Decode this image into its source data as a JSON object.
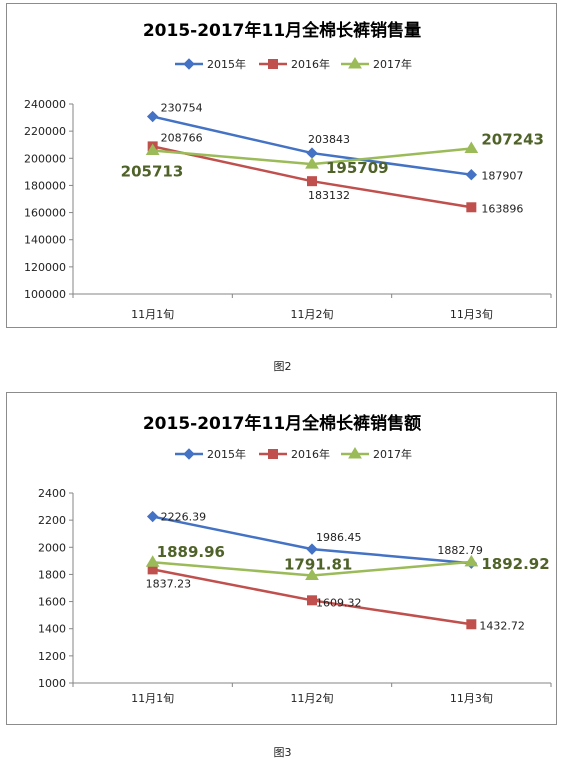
{
  "chart_data": [
    {
      "type": "line",
      "title": "2015-2017年11月全棉长裤销售量",
      "categories": [
        "11月1旬",
        "11月2旬",
        "11月3旬"
      ],
      "ylim": [
        100000,
        240000
      ],
      "yticks": [
        "100000",
        "120000",
        "140000",
        "160000",
        "180000",
        "200000",
        "220000",
        "240000"
      ],
      "grid": false,
      "legend": "top",
      "series": [
        {
          "name": "2015年",
          "values": [
            230754,
            203843,
            187907
          ],
          "color": "#4472c4",
          "marker": "diamond",
          "labels": [
            "230754",
            "203843",
            "187907"
          ]
        },
        {
          "name": "2016年",
          "values": [
            208766,
            183132,
            163896
          ],
          "color": "#c0504d",
          "marker": "square",
          "labels": [
            "208766",
            "183132",
            "163896"
          ]
        },
        {
          "name": "2017年",
          "values": [
            205713,
            195709,
            207243
          ],
          "color": "#9bbb59",
          "marker": "triangle",
          "labels": [
            "205713",
            "195709",
            "207243"
          ]
        }
      ]
    },
    {
      "type": "line",
      "title": "2015-2017年11月全棉长裤销售额",
      "categories": [
        "11月1旬",
        "11月2旬",
        "11月3旬"
      ],
      "ylim": [
        1000,
        2400
      ],
      "yticks": [
        "1000",
        "1200",
        "1400",
        "1600",
        "1800",
        "2000",
        "2200",
        "2400"
      ],
      "grid": false,
      "legend": "top",
      "series": [
        {
          "name": "2015年",
          "values": [
            2226.39,
            1986.45,
            1882.79
          ],
          "color": "#4472c4",
          "marker": "diamond",
          "labels": [
            "2226.39",
            "1986.45",
            "1882.79"
          ]
        },
        {
          "name": "2016年",
          "values": [
            1837.23,
            1609.32,
            1432.72
          ],
          "color": "#c0504d",
          "marker": "square",
          "labels": [
            "1837.23",
            "1609.32",
            "1432.72"
          ]
        },
        {
          "name": "2017年",
          "values": [
            1889.96,
            1791.81,
            1892.92
          ],
          "color": "#9bbb59",
          "marker": "triangle",
          "labels": [
            "1889.96",
            "1791.81",
            "1892.92"
          ]
        }
      ]
    }
  ],
  "captions": [
    "图2",
    "图3"
  ],
  "highlight_color": "#4f6228"
}
